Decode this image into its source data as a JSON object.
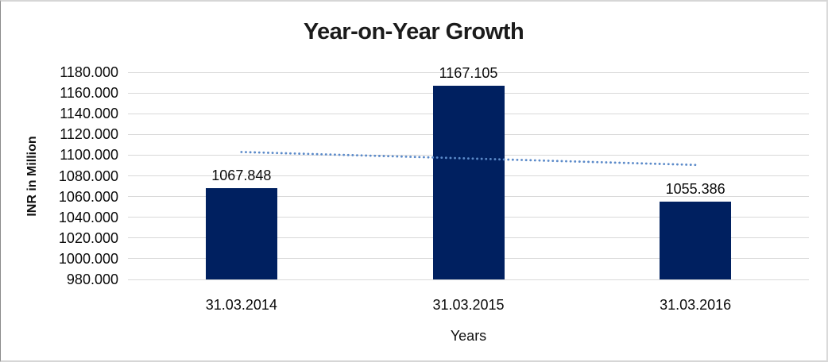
{
  "chart_data": {
    "type": "bar",
    "title": "Year-on-Year Growth",
    "xlabel": "Years",
    "ylabel": "INR in Million",
    "categories": [
      "31.03.2014",
      "31.03.2015",
      "31.03.2016"
    ],
    "values": [
      1067.848,
      1167.105,
      1055.386
    ],
    "data_labels": [
      "1067.848",
      "1167.105",
      "1055.386"
    ],
    "ylim": [
      980,
      1180
    ],
    "ytick_step": 20,
    "ytick_labels": [
      "1180.000",
      "1160.000",
      "1140.000",
      "1120.000",
      "1100.000",
      "1080.000",
      "1060.000",
      "1040.000",
      "1020.000",
      "1000.000",
      "980.000"
    ],
    "grid": true,
    "legend": "none",
    "trendline": {
      "type": "linear",
      "style": "dotted",
      "color": "#5b8ac9"
    },
    "colors": {
      "bar": "#002060",
      "gridline": "#d9d9d9",
      "text": "#0b0b0b",
      "title": "#1b1b1b",
      "background": "#ffffff"
    }
  }
}
